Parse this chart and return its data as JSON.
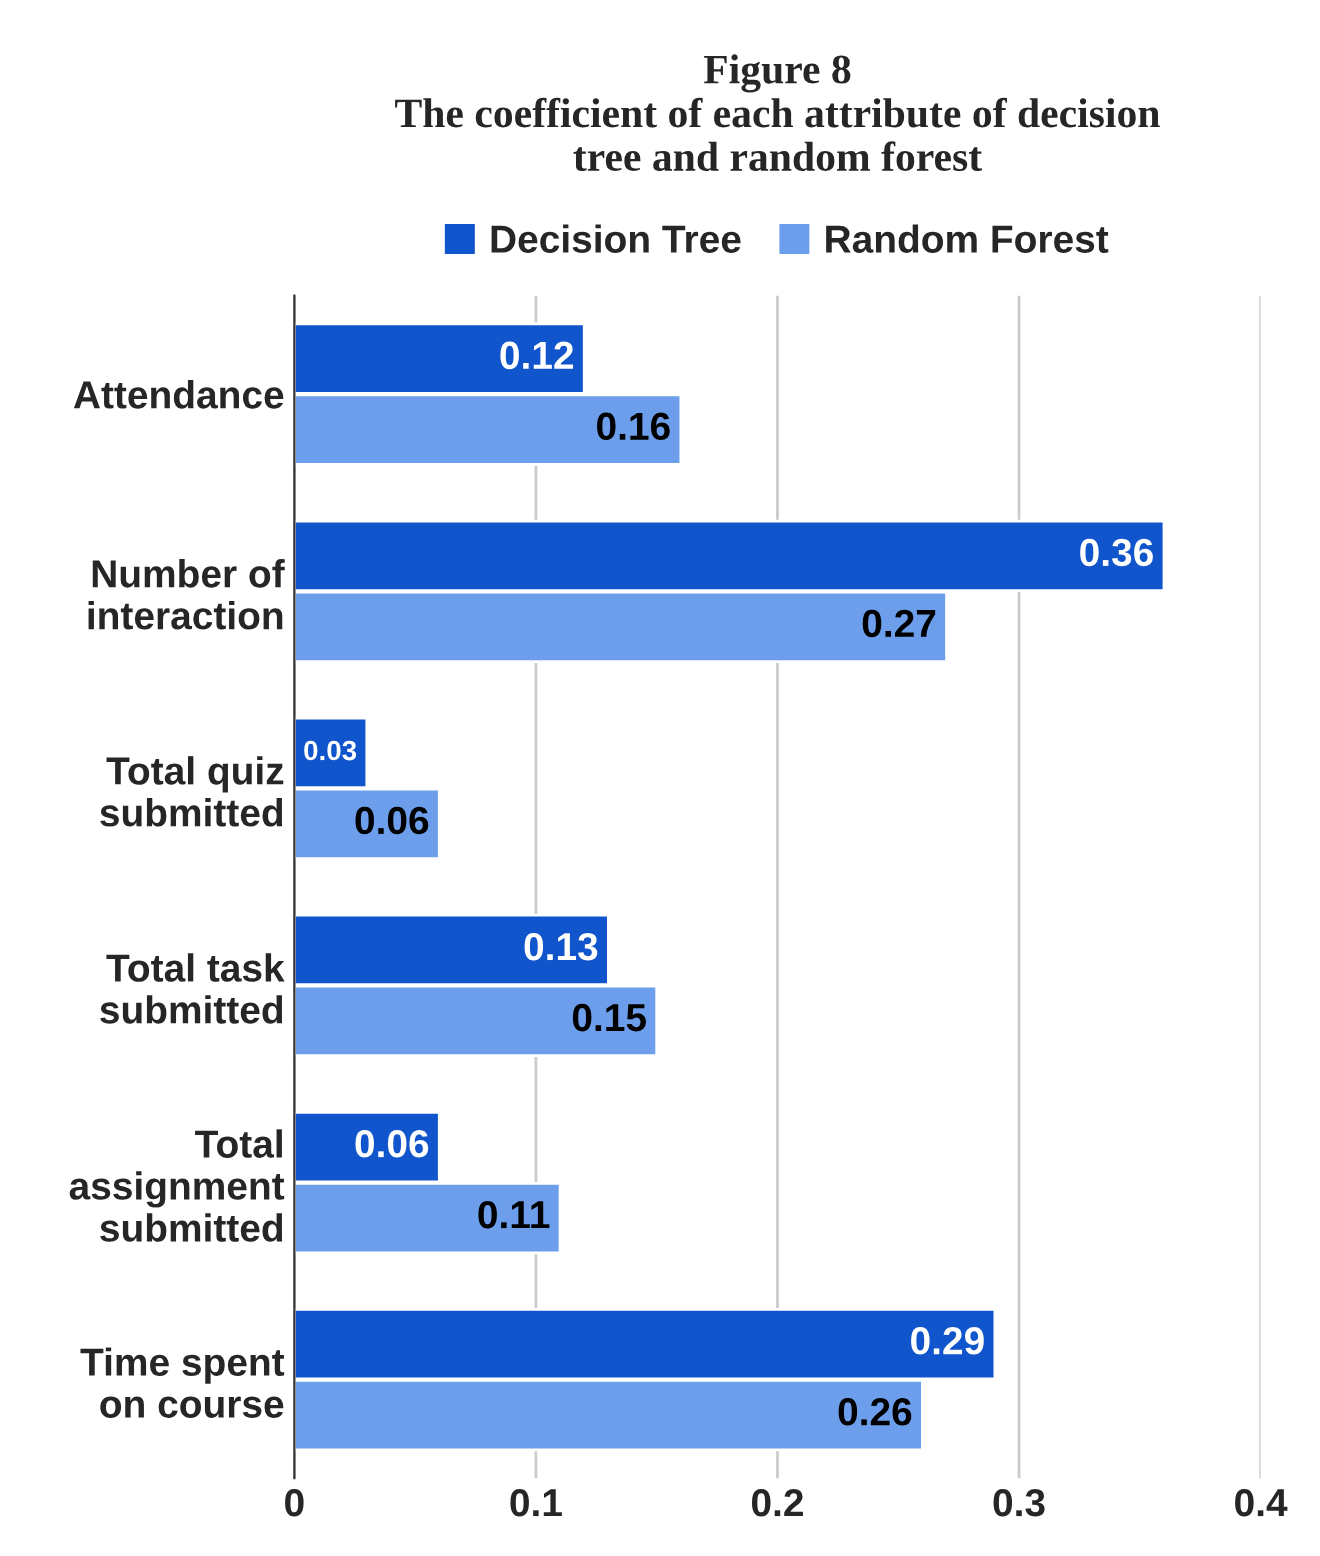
{
  "chart_data": {
    "type": "bar",
    "orientation": "horizontal",
    "title": "Figure 8\nThe coefficient of each attribute of decision\ntree and random forest",
    "categories": [
      "Attendance",
      "Number of\ninteraction",
      "Total quiz\nsubmitted",
      "Total task\nsubmitted",
      "Total\nassignment\nsubmitted",
      "Time spent\non course"
    ],
    "series": [
      {
        "name": "Decision Tree",
        "color": "#1155cc",
        "values": [
          0.12,
          0.36,
          0.03,
          0.13,
          0.06,
          0.29
        ]
      },
      {
        "name": "Random Forest",
        "color": "#6d9eeb",
        "values": [
          0.16,
          0.27,
          0.06,
          0.15,
          0.11,
          0.26
        ]
      }
    ],
    "xlim": [
      0,
      0.4
    ],
    "xticks": [
      0,
      0.1,
      0.2,
      0.3,
      0.4
    ],
    "grid": "x",
    "legend": "top",
    "data_labels": true
  }
}
